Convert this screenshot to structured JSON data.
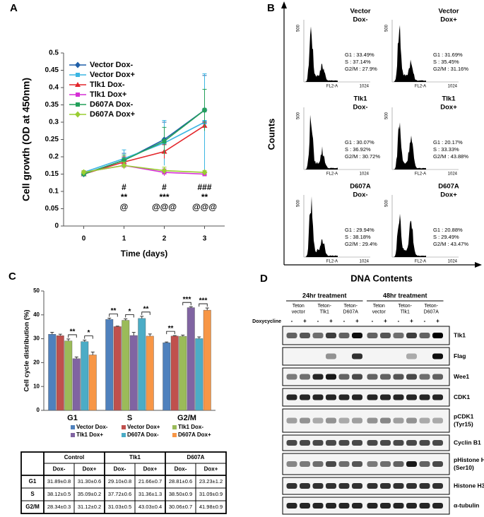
{
  "chart_data": [
    {
      "panel": "A",
      "type": "line",
      "x_label": "Time (days)",
      "y_label": "Cell growth (OD at 450nm)",
      "x": [
        0,
        1,
        2,
        3
      ],
      "xlim": [
        -0.5,
        3.5
      ],
      "xticks": [
        0,
        1,
        2,
        3
      ],
      "ylim": [
        0,
        0.5
      ],
      "yticks": [
        0,
        0.05,
        0.1,
        0.15,
        0.2,
        0.25,
        0.3,
        0.35,
        0.4,
        0.45,
        0.5
      ],
      "series": [
        {
          "name": "Vector Dox-",
          "color": "#1f5fa8",
          "marker": "diamond",
          "values": [
            0.15,
            0.19,
            0.25,
            0.335
          ],
          "errors": [
            0.005,
            0.02,
            0.05,
            0.1
          ]
        },
        {
          "name": "Vector Dox+",
          "color": "#3cb6e3",
          "marker": "square",
          "values": [
            0.155,
            0.195,
            0.24,
            0.3
          ],
          "errors": [
            0.005,
            0.025,
            0.065,
            0.14
          ]
        },
        {
          "name": "Tlk1 Dox-",
          "color": "#e3262b",
          "marker": "triangle",
          "values": [
            0.15,
            0.185,
            0.215,
            0.29
          ],
          "errors": [
            0.005,
            0.015,
            0.02,
            0.01
          ]
        },
        {
          "name": "Tlk1 Dox+",
          "color": "#d62fd6",
          "marker": "square",
          "values": [
            0.155,
            0.175,
            0.155,
            0.15
          ],
          "errors": [
            0.005,
            0.01,
            0.01,
            0.005
          ]
        },
        {
          "name": "D607A Dox-",
          "color": "#23a05a",
          "marker": "square",
          "values": [
            0.15,
            0.19,
            0.245,
            0.335
          ],
          "errors": [
            0.005,
            0.015,
            0.04,
            0.06
          ]
        },
        {
          "name": "D607A Dox+",
          "color": "#9acd32",
          "marker": "diamond",
          "values": [
            0.155,
            0.175,
            0.16,
            0.155
          ],
          "errors": [
            0.005,
            0.01,
            0.01,
            0.005
          ]
        }
      ],
      "annotations": [
        {
          "x": 1,
          "lines": [
            "#",
            "**",
            "@"
          ]
        },
        {
          "x": 2,
          "lines": [
            "#",
            "***",
            "@@@"
          ]
        },
        {
          "x": 3,
          "lines": [
            "###",
            "**",
            "@@@"
          ]
        }
      ]
    },
    {
      "panel": "C",
      "type": "bar",
      "y_label": "Cell cycle distribution (%)",
      "categories": [
        "G1",
        "S",
        "G2/M"
      ],
      "ylim": [
        0,
        50
      ],
      "yticks": [
        0,
        10,
        20,
        30,
        40,
        50
      ],
      "series": [
        {
          "name": "Vector Dox-",
          "color": "#4f81bd",
          "values": [
            31.89,
            38.12,
            28.34
          ],
          "errors": [
            0.8,
            0.5,
            0.3
          ]
        },
        {
          "name": "Vector Dox+",
          "color": "#c0504d",
          "values": [
            31.3,
            35.09,
            31.12
          ],
          "errors": [
            0.6,
            0.2,
            0.2
          ]
        },
        {
          "name": "Tlk1 Dox-",
          "color": "#9bbb59",
          "values": [
            29.1,
            37.72,
            31.03
          ],
          "errors": [
            0.8,
            0.6,
            0.5
          ]
        },
        {
          "name": "Tlk1 Dox+",
          "color": "#8064a2",
          "values": [
            21.66,
            31.36,
            43.03
          ],
          "errors": [
            0.7,
            1.3,
            0.4
          ]
        },
        {
          "name": "D607A Dox-",
          "color": "#4bacc6",
          "values": [
            28.81,
            38.5,
            30.06
          ],
          "errors": [
            0.6,
            0.9,
            0.7
          ]
        },
        {
          "name": "D607A Dox+",
          "color": "#f79646",
          "values": [
            23.23,
            31.09,
            41.98
          ],
          "errors": [
            1.2,
            0.9,
            0.9
          ]
        }
      ],
      "significance": [
        [
          null,
          "**",
          "*"
        ],
        [
          "**",
          "*",
          "**"
        ],
        [
          "**",
          "***",
          "***"
        ]
      ]
    }
  ],
  "flow": {
    "panel": "B",
    "y_label": "Counts",
    "x_label": "DNA Contents",
    "panels": [
      {
        "title": [
          "Vector",
          "Dox-"
        ],
        "stats": [
          "G1 : 33.49%",
          "S : 37.14%",
          "G2/M : 27.9%"
        ],
        "axis_x": "FL2-A",
        "x_max": 1024,
        "y_max": 500
      },
      {
        "title": [
          "Vector",
          "Dox+"
        ],
        "stats": [
          "G1 : 31.69%",
          "S : 35.45%",
          "G2/M : 31.16%"
        ],
        "axis_x": "FL2-A",
        "x_max": 1024,
        "y_max": 500
      },
      {
        "title": [
          "Tlk1",
          "Dox-"
        ],
        "stats": [
          "G1 : 30.07%",
          "S : 36.92%",
          "G2/M : 30.72%"
        ],
        "axis_x": "FL2-A",
        "x_max": 1024,
        "y_max": 500
      },
      {
        "title": [
          "Tlk1",
          "Dox+"
        ],
        "stats": [
          "G1 : 20.17%",
          "S : 33.33%",
          "G2/M : 43.88%"
        ],
        "axis_x": "FL2-A",
        "x_max": 1024,
        "y_max": 500
      },
      {
        "title": [
          "D607A",
          "Dox-"
        ],
        "stats": [
          "G1 : 29.94%",
          "S : 38.18%",
          "G2/M : 29.4%"
        ],
        "axis_x": "FL2-A",
        "x_max": 1024,
        "y_max": 500
      },
      {
        "title": [
          "D607A",
          "Dox+"
        ],
        "stats": [
          "G1 : 20.88%",
          "S : 29.49%",
          "G2/M : 43.47%"
        ],
        "axis_x": "FL2-A",
        "x_max": 1024,
        "y_max": 500
      }
    ]
  },
  "table": {
    "groups": [
      "Control",
      "Tlk1",
      "D607A"
    ],
    "subheaders": [
      "Dox-",
      "Dox+",
      "Dox-",
      "Dox+",
      "Dox-",
      "Dox+"
    ],
    "rows": [
      {
        "label": "G1",
        "cells": [
          "31.89±0.8",
          "31.30±0.6",
          "29.10±0.8",
          "21.66±0.7",
          "28.81±0.6",
          "23.23±1.2"
        ]
      },
      {
        "label": "S",
        "cells": [
          "38.12±0.5",
          "35.09±0.2",
          "37.72±0.6",
          "31.36±1.3",
          "38.50±0.9",
          "31.09±0.9"
        ]
      },
      {
        "label": "G2/M",
        "cells": [
          "28.34±0.3",
          "31.12±0.2",
          "31.03±0.5",
          "43.03±0.4",
          "30.06±0.7",
          "41.98±0.9"
        ]
      }
    ]
  },
  "blot": {
    "panel": "D",
    "periods": [
      "24hr treatment",
      "48hr treatment"
    ],
    "groups": [
      [
        "Teton",
        "vector"
      ],
      [
        "Teton-",
        "Tlk1"
      ],
      [
        "Teton-",
        "D607A"
      ],
      [
        "Teton",
        "vector"
      ],
      [
        "Teton-",
        "Tlk1"
      ],
      [
        "Teton-",
        "D607A"
      ]
    ],
    "treatment_label": "Doxycycline",
    "lanes": [
      "-",
      "+",
      "-",
      "+",
      "-",
      "+",
      "-",
      "+",
      "-",
      "+",
      "-",
      "+"
    ],
    "rows": [
      [
        "Tlk1"
      ],
      [
        "Flag"
      ],
      [
        "Wee1"
      ],
      [
        "CDK1"
      ],
      [
        "pCDK1",
        "(Tyr15)"
      ],
      [
        "Cyclin B1"
      ],
      [
        "pHistone H3",
        "(Ser10)"
      ],
      [
        "Histone H3"
      ],
      [
        "α-tubulin"
      ]
    ]
  }
}
